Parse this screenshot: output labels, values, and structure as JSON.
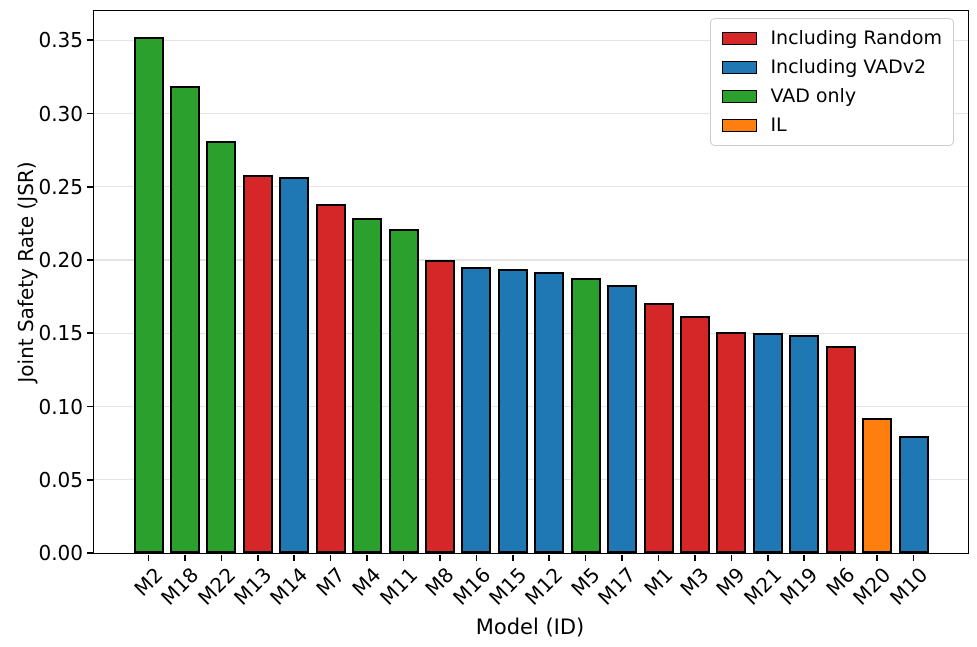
{
  "chart_data": {
    "type": "bar",
    "title": "",
    "xlabel": "Model (ID)",
    "ylabel": "Joint Safety Rate (JSR)",
    "ylim": [
      0,
      0.37
    ],
    "ytick_step": 0.05,
    "ytick_labels": [
      "0.00",
      "0.05",
      "0.10",
      "0.15",
      "0.20",
      "0.25",
      "0.30",
      "0.35"
    ],
    "grid": "horizontal",
    "background_color": "#ffffff",
    "bar_edge_color": "#000000",
    "categories": [
      "M2",
      "M18",
      "M22",
      "M13",
      "M14",
      "M7",
      "M4",
      "M11",
      "M8",
      "M16",
      "M15",
      "M12",
      "M5",
      "M17",
      "M1",
      "M3",
      "M9",
      "M21",
      "M19",
      "M6",
      "M20",
      "M10"
    ],
    "values": [
      0.352,
      0.319,
      0.281,
      0.258,
      0.257,
      0.238,
      0.229,
      0.221,
      0.2,
      0.195,
      0.194,
      0.192,
      0.188,
      0.183,
      0.171,
      0.162,
      0.151,
      0.15,
      0.149,
      0.141,
      0.092,
      0.08
    ],
    "groups": [
      "VAD only",
      "VAD only",
      "VAD only",
      "Including Random",
      "Including VADv2",
      "Including Random",
      "VAD only",
      "VAD only",
      "Including Random",
      "Including VADv2",
      "Including VADv2",
      "Including VADv2",
      "VAD only",
      "Including VADv2",
      "Including Random",
      "Including Random",
      "Including Random",
      "Including VADv2",
      "Including VADv2",
      "Including Random",
      "IL",
      "Including VADv2"
    ],
    "legend": {
      "position": "upper right",
      "entries": [
        {
          "label": "Including Random",
          "color": "#d62728"
        },
        {
          "label": "Including VADv2",
          "color": "#1f77b4"
        },
        {
          "label": "VAD only",
          "color": "#2ca02c"
        },
        {
          "label": "IL",
          "color": "#ff7f0e"
        }
      ]
    }
  }
}
